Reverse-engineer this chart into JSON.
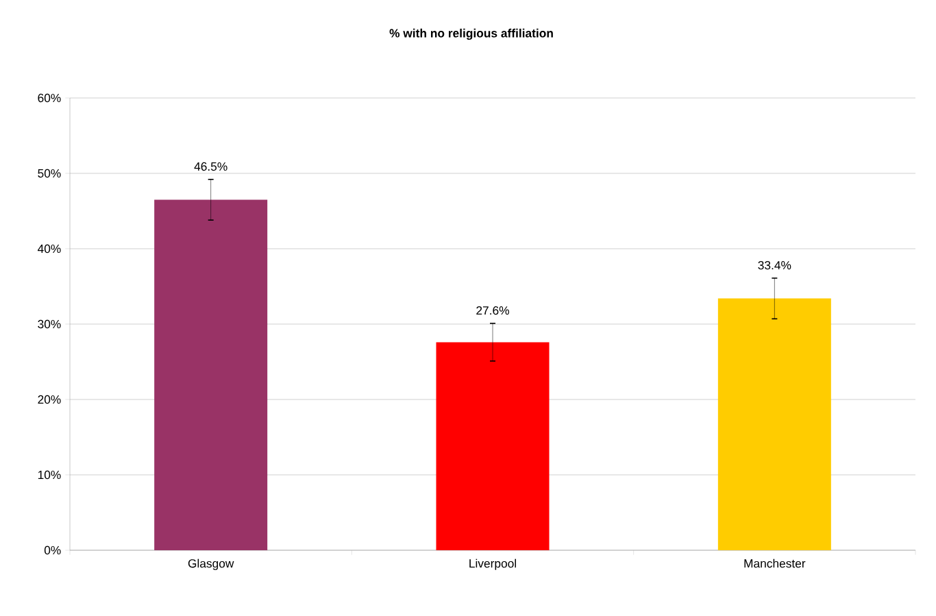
{
  "chart_data": {
    "type": "bar",
    "title": "% with no religious affiliation",
    "categories": [
      "Glasgow",
      "Liverpool",
      "Manchester"
    ],
    "values": [
      46.5,
      27.6,
      33.4
    ],
    "colors": [
      "#993366",
      "#ff0000",
      "#ffcc00"
    ],
    "errors": [
      2.7,
      2.5,
      2.7
    ],
    "value_labels": [
      "46.5%",
      "27.6%",
      "33.4%"
    ],
    "ylim": [
      0,
      60
    ],
    "yticks": [
      {
        "value": 0,
        "label": "0%"
      },
      {
        "value": 10,
        "label": "10%"
      },
      {
        "value": 20,
        "label": "20%"
      },
      {
        "value": 30,
        "label": "30%"
      },
      {
        "value": 40,
        "label": "40%"
      },
      {
        "value": 50,
        "label": "50%"
      },
      {
        "value": 60,
        "label": "60%"
      }
    ],
    "grid": "y"
  }
}
